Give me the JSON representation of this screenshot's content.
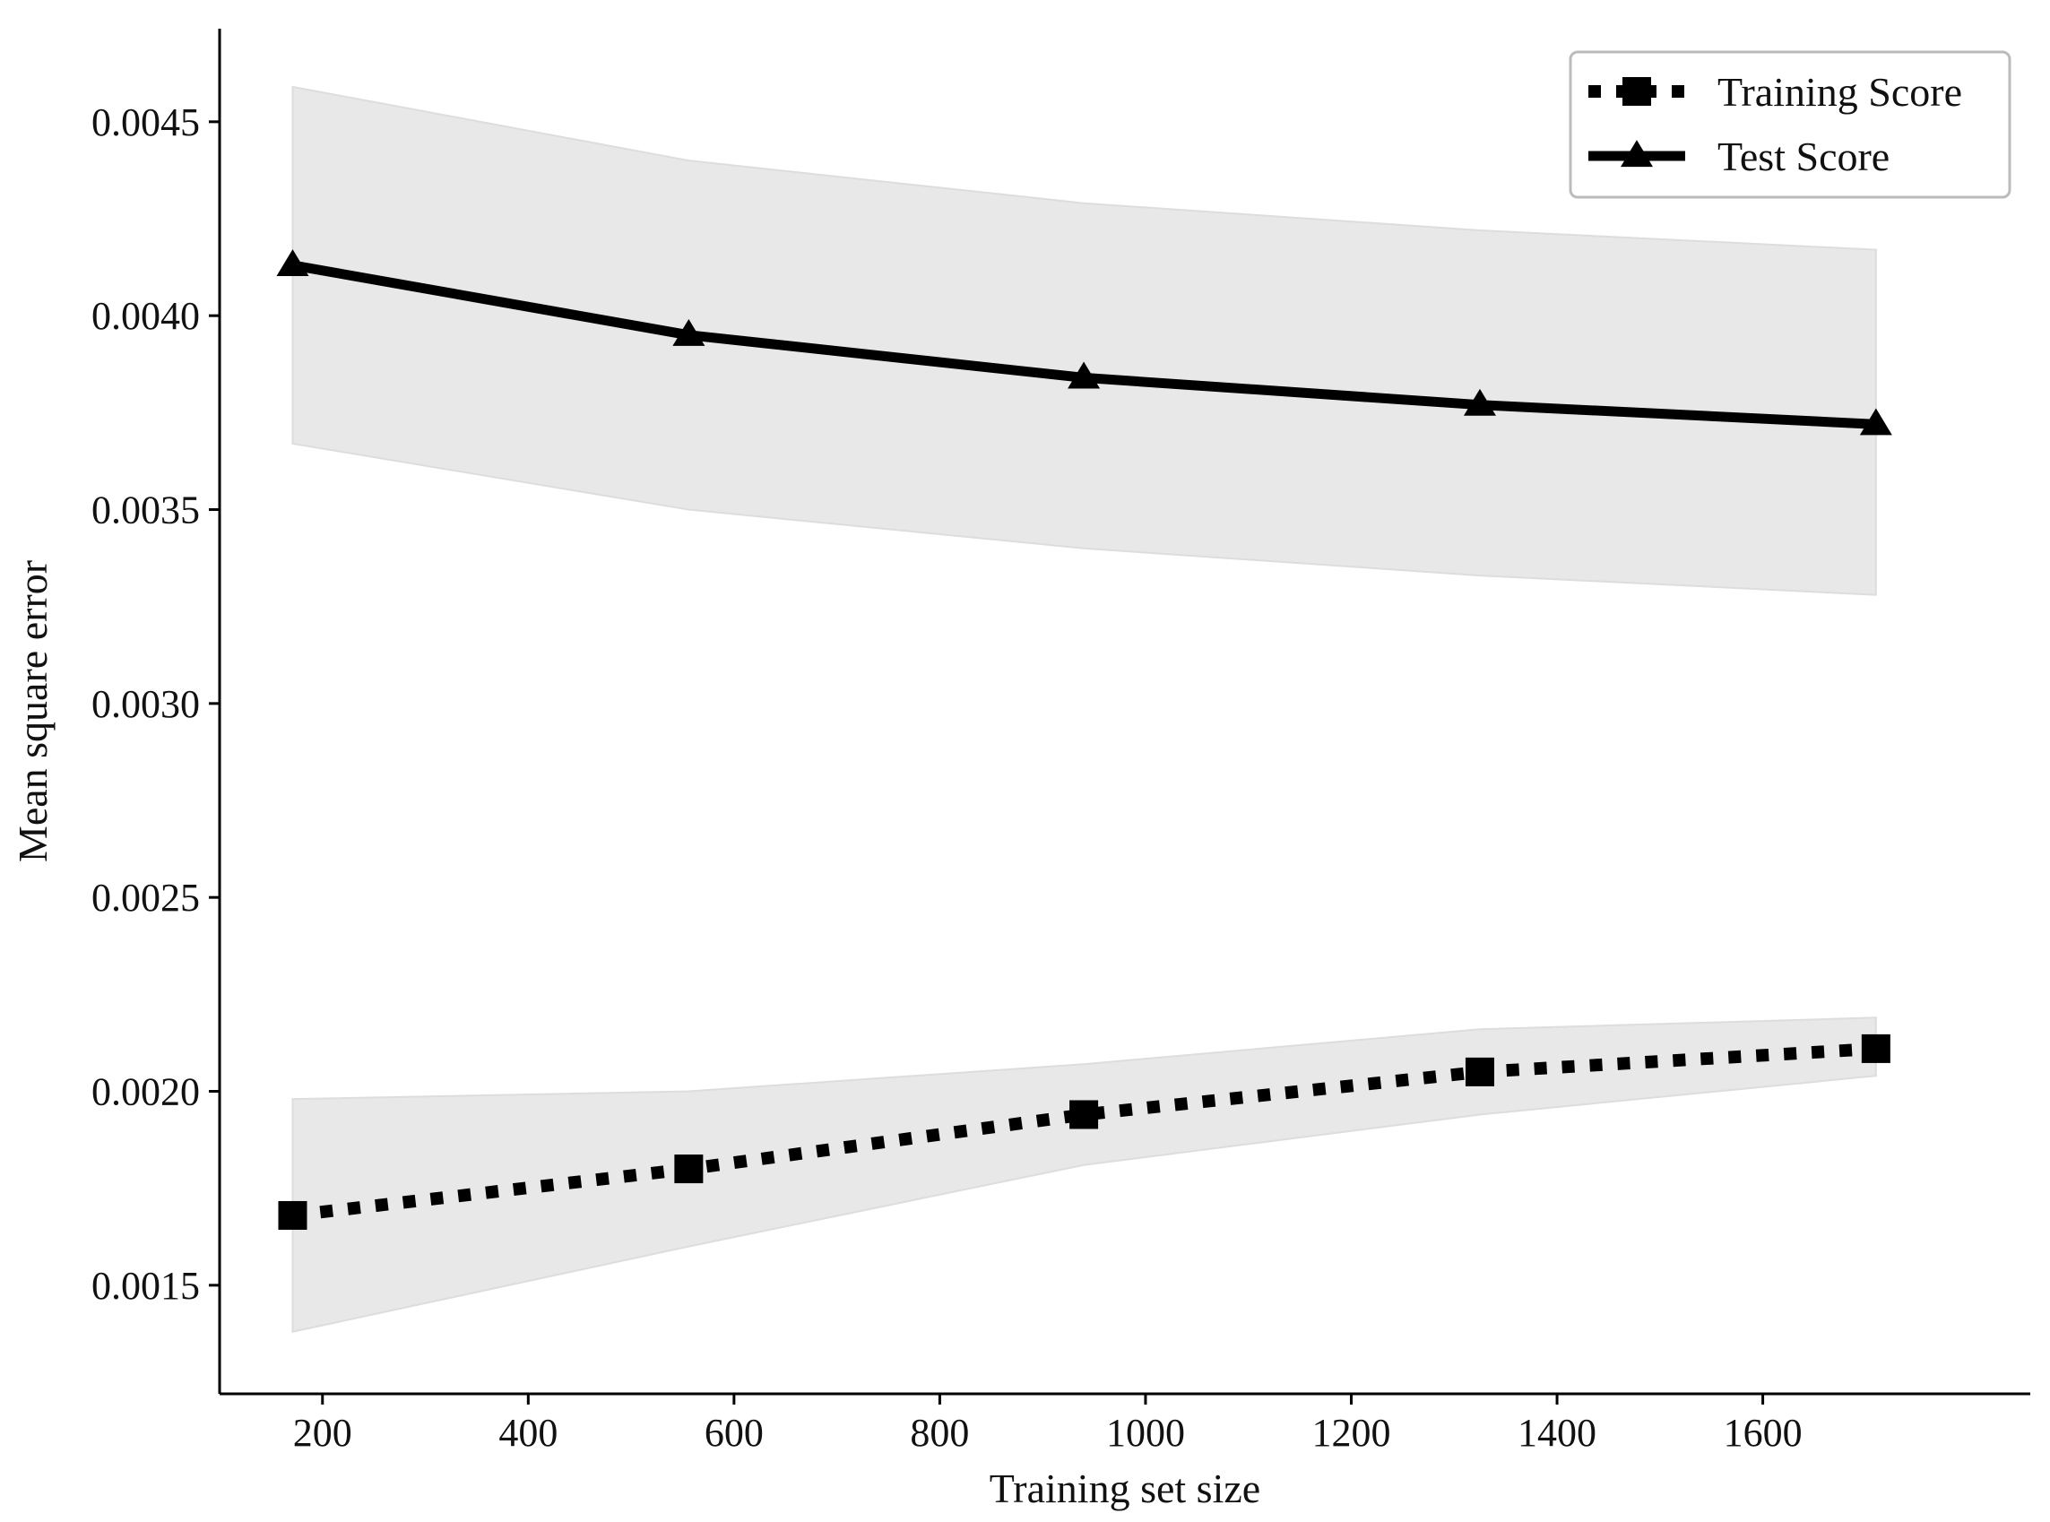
{
  "chart_data": {
    "type": "line",
    "title": "",
    "xlabel": "Training set size",
    "ylabel": "Mean square error",
    "xlim": [
      100,
      1860
    ],
    "ylim": [
      0.00122,
      0.00474
    ],
    "x_ticks": [
      200,
      400,
      600,
      800,
      1000,
      1200,
      1400,
      1600
    ],
    "x_tick_labels": [
      "200",
      "400",
      "600",
      "800",
      "1000",
      "1200",
      "1400",
      "1600"
    ],
    "y_ticks": [
      0.0015,
      0.002,
      0.0025,
      0.003,
      0.0035,
      0.004,
      0.0045
    ],
    "y_tick_labels": [
      "0.0015",
      "0.0020",
      "0.0025",
      "0.0030",
      "0.0035",
      "0.0040",
      "0.0045"
    ],
    "grid": false,
    "legend_position": "top-right",
    "x": [
      171,
      556,
      940,
      1325,
      1710
    ],
    "series": [
      {
        "name": "Training Score",
        "values": [
          0.00168,
          0.0018,
          0.00194,
          0.00205,
          0.00211
        ],
        "band_upper": [
          0.00198,
          0.002,
          0.00207,
          0.00216,
          0.00219
        ],
        "band_lower": [
          0.00138,
          0.0016,
          0.00181,
          0.00194,
          0.00204
        ],
        "marker": "square",
        "line_style": "dotted",
        "color": "#000000"
      },
      {
        "name": "Test Score",
        "values": [
          0.00413,
          0.00395,
          0.00384,
          0.00377,
          0.00372
        ],
        "band_upper": [
          0.00459,
          0.0044,
          0.00429,
          0.00422,
          0.00417
        ],
        "band_lower": [
          0.00367,
          0.0035,
          0.0034,
          0.00333,
          0.00328
        ],
        "marker": "triangle",
        "line_style": "solid",
        "color": "#000000"
      }
    ],
    "band_color": "#e8e8e8"
  }
}
